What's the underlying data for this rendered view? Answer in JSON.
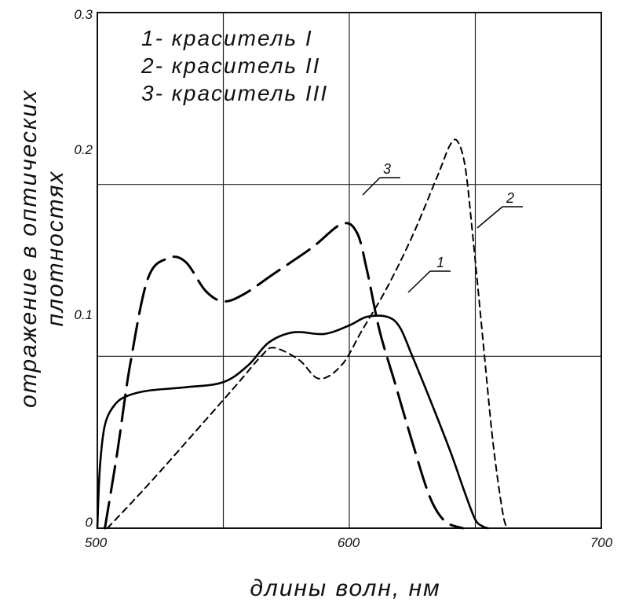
{
  "chart_data": {
    "type": "line",
    "xlabel": "длины волн, нм",
    "ylabel": [
      "отражение в оптических",
      "плотностях"
    ],
    "xlim": [
      500,
      700
    ],
    "ylim": [
      0,
      0.3
    ],
    "x_ticks": [
      "500",
      "600",
      "700"
    ],
    "y_ticks": [
      "0",
      "0.1",
      "0.2",
      "0.3"
    ],
    "grid": true,
    "legend": {
      "placement": "top-left",
      "entries": [
        "1- краситель I",
        "2- краситель II",
        "3- краситель III"
      ]
    },
    "series": [
      {
        "name": "1",
        "style": "solid",
        "x": [
          500,
          501,
          503,
          507,
          512,
          520,
          535,
          550,
          560,
          568,
          578,
          590,
          600,
          607,
          615,
          620,
          625,
          632,
          640,
          646,
          650,
          653,
          655
        ],
        "y": [
          0,
          0.035,
          0.06,
          0.072,
          0.077,
          0.08,
          0.082,
          0.085,
          0.095,
          0.108,
          0.114,
          0.113,
          0.118,
          0.123,
          0.123,
          0.117,
          0.1,
          0.075,
          0.045,
          0.02,
          0.005,
          0.001,
          0
        ]
      },
      {
        "name": "2",
        "style": "dashed",
        "x": [
          504,
          520,
          540,
          555,
          565,
          570,
          580,
          588,
          597,
          605,
          615,
          625,
          635,
          640,
          643,
          646,
          649,
          653,
          657,
          661,
          663
        ],
        "y": [
          0,
          0.025,
          0.058,
          0.083,
          0.1,
          0.105,
          0.098,
          0.087,
          0.095,
          0.115,
          0.14,
          0.17,
          0.205,
          0.223,
          0.225,
          0.21,
          0.17,
          0.11,
          0.05,
          0.008,
          0
        ]
      },
      {
        "name": "3",
        "style": "long-dashed",
        "x": [
          503,
          508,
          513,
          520,
          528,
          535,
          543,
          550,
          558,
          570,
          585,
          597,
          603,
          607,
          612,
          618,
          625,
          632,
          638,
          645
        ],
        "y": [
          0,
          0.045,
          0.095,
          0.145,
          0.157,
          0.155,
          0.138,
          0.132,
          0.136,
          0.148,
          0.163,
          0.177,
          0.172,
          0.15,
          0.115,
          0.085,
          0.05,
          0.018,
          0.004,
          0
        ]
      }
    ],
    "curve_labels": [
      "1",
      "2",
      "3"
    ]
  }
}
